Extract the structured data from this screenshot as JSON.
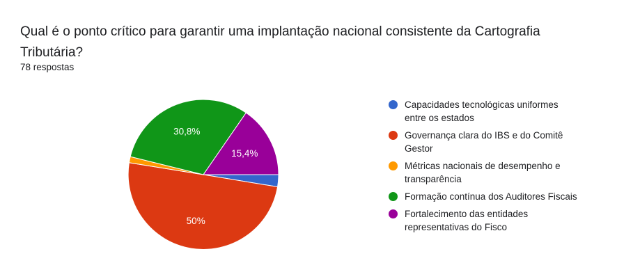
{
  "question": {
    "title": "Qual é o ponto crítico para garantir uma implantação nacional consistente da Cartografia Tributária?",
    "responses": "78 respostas"
  },
  "chart_data": {
    "type": "pie",
    "title": "Qual é o ponto crítico para garantir uma implantação nacional consistente da Cartografia Tributária?",
    "slices": [
      {
        "name": "Capacidades tecnológicas uniformes entre os estados",
        "value": 2.6,
        "label": "",
        "color": "#3366cc"
      },
      {
        "name": "Governança clara do IBS e do Comitê Gestor",
        "value": 50.0,
        "label": "50%",
        "color": "#dc3912"
      },
      {
        "name": "Métricas nacionais de desempenho e transparência",
        "value": 1.3,
        "label": "",
        "color": "#ff9900"
      },
      {
        "name": "Formação contínua dos Auditores Fiscais",
        "value": 30.8,
        "label": "30,8%",
        "color": "#109618"
      },
      {
        "name": "Fortalecimento das entidades representativas do Fisco",
        "value": 15.4,
        "label": "15,4%",
        "color": "#990099"
      }
    ],
    "start_angle_deg": 90,
    "direction": "clockwise",
    "legend_position": "right"
  }
}
